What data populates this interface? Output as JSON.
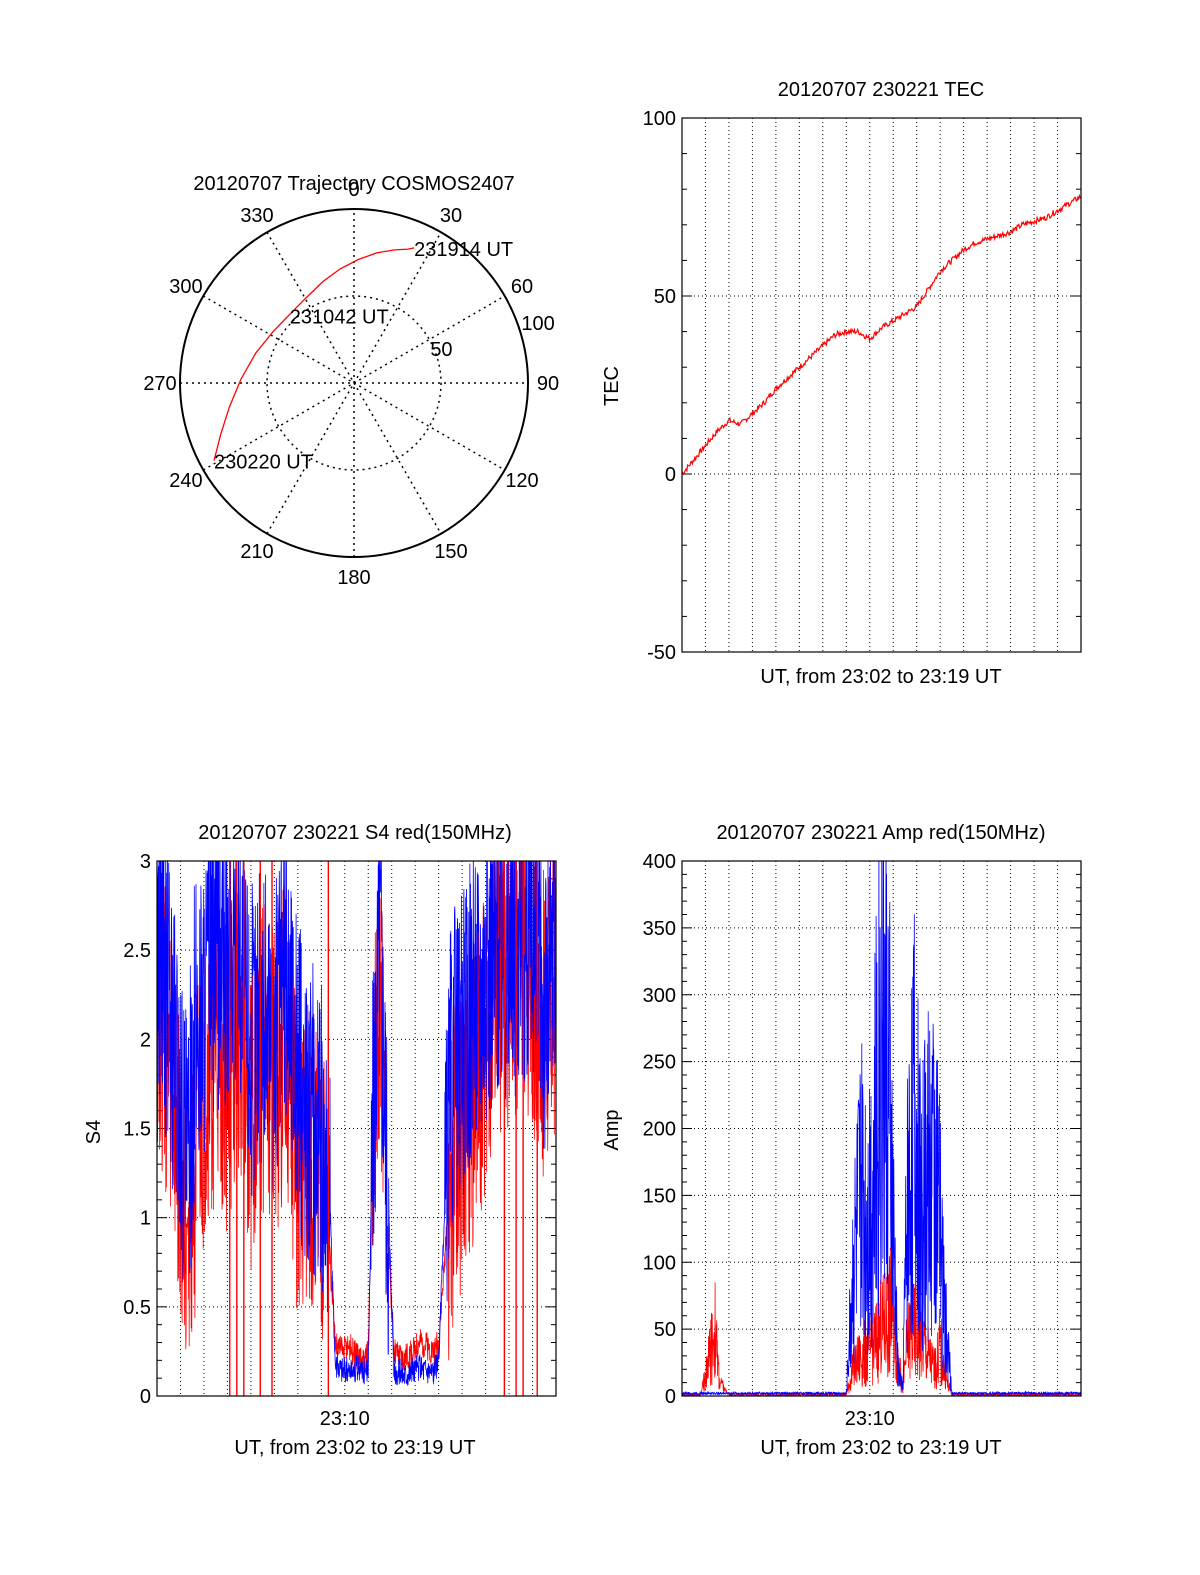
{
  "chart_data": [
    {
      "type": "polar",
      "title": "20120707 Trajectory COSMOS2407",
      "angle_labels": [
        "0",
        "30",
        "60",
        "90",
        "120",
        "150",
        "180",
        "210",
        "240",
        "270",
        "300",
        "330"
      ],
      "radius_labels": [
        "50",
        "100"
      ],
      "rlim": [
        0,
        100
      ],
      "grid": true,
      "series": [
        {
          "color": "#ff0000",
          "points": [
            {
              "az": 241,
              "r": 92
            },
            {
              "az": 249,
              "r": 82
            },
            {
              "az": 259,
              "r": 73
            },
            {
              "az": 272,
              "r": 65
            },
            {
              "az": 287,
              "r": 59
            },
            {
              "az": 303,
              "r": 55
            },
            {
              "az": 316,
              "r": 54
            },
            {
              "az": 330,
              "r": 56
            },
            {
              "az": 343,
              "r": 61
            },
            {
              "az": 353,
              "r": 66
            },
            {
              "az": 2,
              "r": 71
            },
            {
              "az": 10,
              "r": 76
            },
            {
              "az": 17,
              "r": 80
            },
            {
              "az": 22,
              "r": 83
            },
            {
              "az": 24,
              "r": 85
            }
          ]
        }
      ],
      "annotations": [
        {
          "text": "231914 UT",
          "az": 24,
          "r": 85
        },
        {
          "text": "231042 UT",
          "az": 316,
          "r": 54
        },
        {
          "text": "230220 UT",
          "az": 241,
          "r": 92
        }
      ]
    },
    {
      "type": "line",
      "title": "20120707 230221 TEC",
      "xlabel": "UT, from 23:02 to 23:19 UT",
      "ylabel": "TEC",
      "xlim": [
        0,
        17
      ],
      "ylim": [
        -50,
        100
      ],
      "yticks": [
        "-50",
        "0",
        "50",
        "100"
      ],
      "grid": true,
      "series": [
        {
          "color": "#ff0000",
          "x": [
            0,
            0.5,
            1,
            1.5,
            2,
            2.5,
            3,
            3.5,
            4,
            4.5,
            5,
            5.5,
            6,
            6.5,
            7,
            7.5,
            8,
            8.5,
            9,
            9.5,
            10,
            10.5,
            11,
            11.5,
            12,
            12.5,
            13,
            13.5,
            14,
            14.5,
            15,
            15.5,
            16,
            16.5,
            17
          ],
          "y": [
            0,
            4,
            8,
            12,
            15,
            14,
            17,
            20,
            24,
            27,
            30,
            33,
            36,
            39,
            40,
            40,
            38,
            41,
            43,
            45,
            47,
            52,
            57,
            60,
            63,
            65,
            66,
            67,
            68,
            70,
            71,
            72,
            74,
            76,
            78
          ]
        }
      ]
    },
    {
      "type": "line",
      "title": "20120707 230221 S4 red(150MHz)",
      "xlabel": "UT, from 23:02 to 23:19 UT",
      "ylabel": "S4",
      "xlim": [
        0,
        17
      ],
      "ylim": [
        0,
        3
      ],
      "yticks": [
        "0",
        "0.5",
        "1",
        "1.5",
        "2",
        "2.5",
        "3"
      ],
      "xticks": [
        "23:10"
      ],
      "xtick_positions": [
        8
      ],
      "grid": true,
      "series": [
        {
          "color": "#ff0000",
          "x": [
            0,
            0.5,
            1,
            1.3,
            1.6,
            2,
            2.5,
            3,
            3.5,
            4,
            4.5,
            5,
            5.5,
            6,
            6.5,
            7,
            7.3,
            7.6,
            7.9,
            8.2,
            8.5,
            8.8,
            9.0,
            9.2,
            9.5,
            9.8,
            10.1,
            10.5,
            10.9,
            11.2,
            11.5,
            11.8,
            12,
            12.5,
            13,
            13.5,
            14,
            14.5,
            15,
            15.5,
            16,
            16.5,
            17
          ],
          "y": [
            2.3,
            1.8,
            1.2,
            0.95,
            1.3,
            1.6,
            2.0,
            1.8,
            2.2,
            1.6,
            1.9,
            1.7,
            2.1,
            1.3,
            1.4,
            1.1,
            0.9,
            0.3,
            0.25,
            0.28,
            0.22,
            0.2,
            0.25,
            1.4,
            2.4,
            1.0,
            0.25,
            0.2,
            0.25,
            0.3,
            0.28,
            0.25,
            0.3,
            1.2,
            1.5,
            1.7,
            2.0,
            2.4,
            2.2,
            2.6,
            2.3,
            2.1,
            2.4
          ]
        },
        {
          "color": "#0000ff",
          "x": [
            0,
            0.5,
            1,
            1.3,
            1.6,
            2,
            2.5,
            3,
            3.5,
            4,
            4.5,
            5,
            5.5,
            6,
            6.5,
            7,
            7.3,
            7.6,
            7.9,
            8.2,
            8.5,
            8.8,
            9.0,
            9.2,
            9.5,
            9.8,
            10.1,
            10.5,
            10.9,
            11.2,
            11.5,
            11.8,
            12,
            12.5,
            13,
            13.5,
            14,
            14.5,
            15,
            15.5,
            16,
            16.5,
            17
          ],
          "y": [
            2.6,
            2.2,
            1.6,
            1.2,
            2.0,
            2.2,
            2.5,
            2.3,
            2.6,
            2.0,
            2.2,
            2.0,
            2.4,
            1.8,
            1.6,
            1.5,
            1.3,
            0.18,
            0.15,
            0.14,
            0.15,
            0.14,
            0.16,
            1.6,
            2.7,
            1.3,
            0.15,
            0.12,
            0.14,
            0.16,
            0.15,
            0.14,
            0.2,
            1.8,
            2.0,
            2.2,
            2.4,
            2.6,
            2.4,
            2.7,
            2.5,
            2.2,
            2.5
          ]
        }
      ],
      "dropouts_red_x": [
        3.1,
        3.4,
        3.7,
        4.4,
        4.9,
        7.3,
        14.8,
        15.3,
        15.6,
        16.2
      ]
    },
    {
      "type": "line",
      "title": "20120707 230221 Amp red(150MHz)",
      "xlabel": "UT, from 23:02 to 23:19 UT",
      "ylabel": "Amp",
      "xlim": [
        0,
        17
      ],
      "ylim": [
        0,
        400
      ],
      "yticks": [
        "0",
        "50",
        "100",
        "150",
        "200",
        "250",
        "300",
        "350",
        "400"
      ],
      "xticks": [
        "23:10"
      ],
      "xtick_positions": [
        8
      ],
      "grid": true,
      "series": [
        {
          "color": "#ff0000",
          "x": [
            0,
            0.8,
            1,
            1.2,
            1.4,
            1.6,
            2,
            7,
            7.3,
            7.6,
            7.9,
            8.2,
            8.5,
            8.8,
            9.0,
            9.2,
            9.4,
            9.6,
            9.9,
            10.2,
            10.5,
            10.8,
            11.0,
            11.2,
            11.5,
            17
          ],
          "y": [
            1,
            1,
            15,
            35,
            50,
            10,
            1,
            1,
            20,
            30,
            35,
            40,
            50,
            60,
            70,
            30,
            5,
            40,
            50,
            45,
            30,
            20,
            40,
            15,
            1,
            1
          ]
        },
        {
          "color": "#0000ff",
          "x": [
            0,
            7,
            7.3,
            7.6,
            7.9,
            8.2,
            8.5,
            8.8,
            9.0,
            9.2,
            9.4,
            9.6,
            9.9,
            10.2,
            10.5,
            10.8,
            11.0,
            11.2,
            11.5,
            17
          ],
          "y": [
            2,
            2,
            100,
            150,
            140,
            180,
            300,
            240,
            120,
            20,
            5,
            150,
            210,
            130,
            170,
            180,
            120,
            60,
            2,
            2
          ]
        }
      ]
    }
  ]
}
